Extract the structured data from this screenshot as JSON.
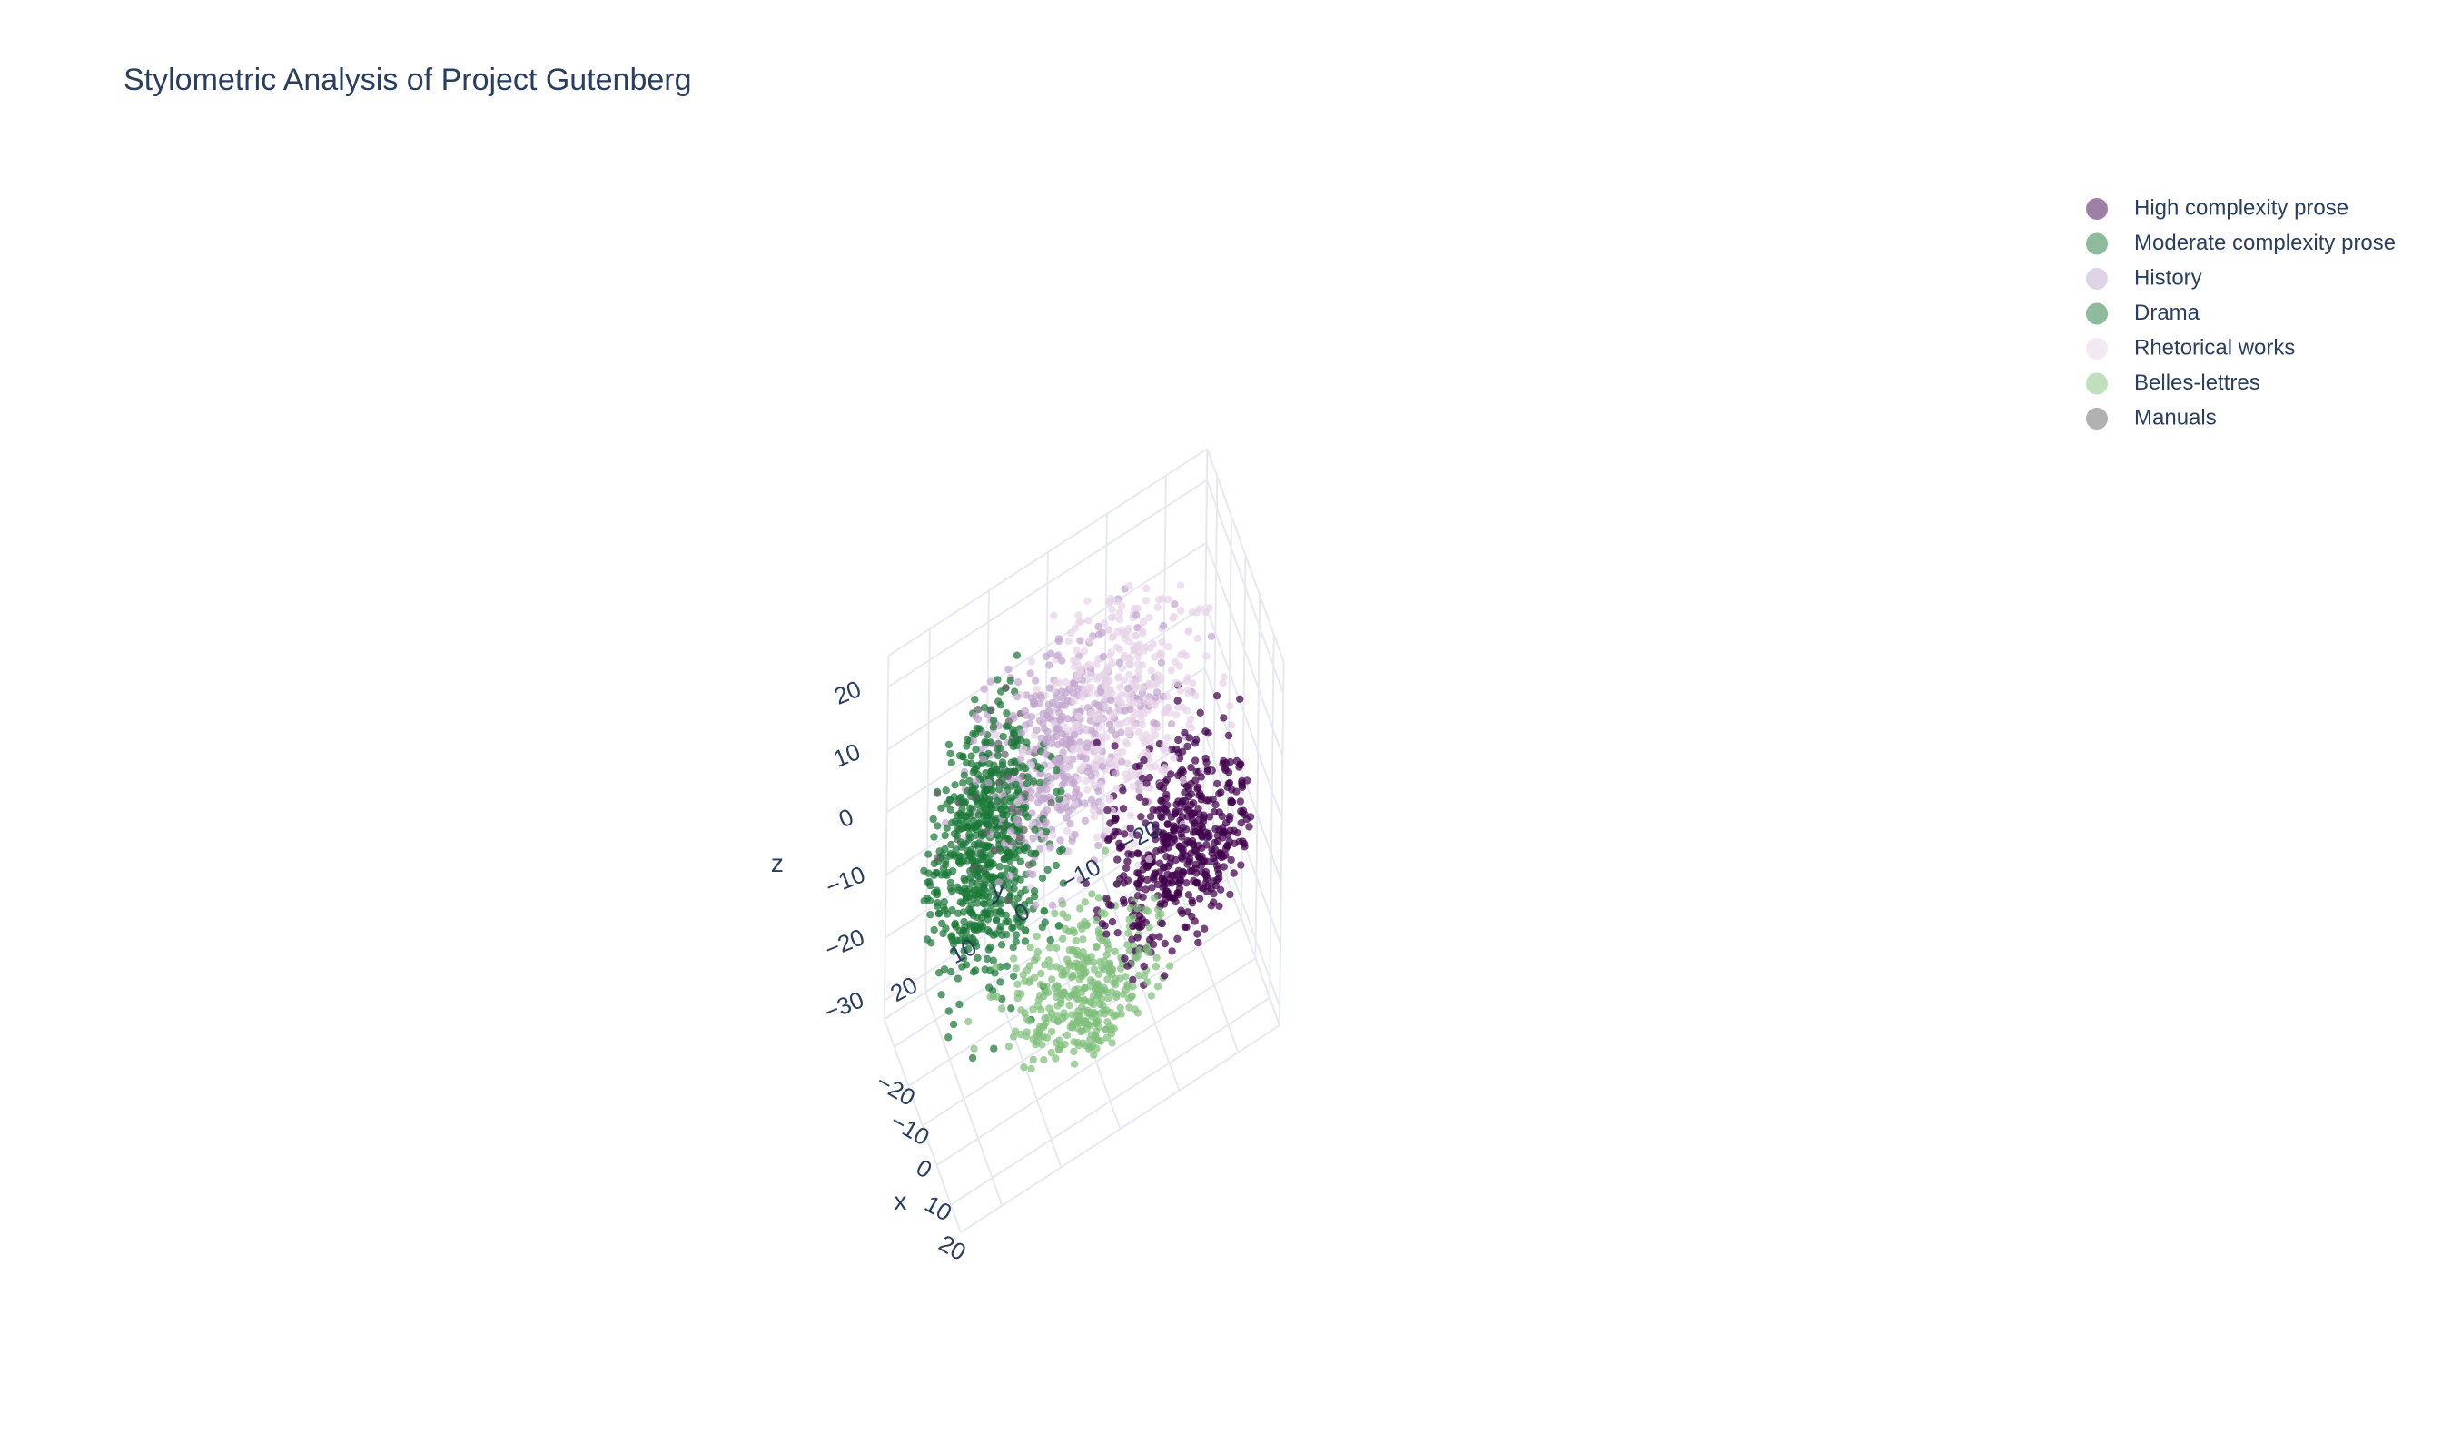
{
  "chart_data": {
    "type": "scatter3d",
    "title": "Stylometric Analysis of Project Gutenberg",
    "axes": {
      "x": {
        "label": "x",
        "range": [
          -27,
          27
        ],
        "ticks": [
          -20,
          -10,
          0,
          10,
          20
        ]
      },
      "y": {
        "label": "y",
        "range": [
          -27,
          27
        ],
        "ticks": [
          -20,
          -10,
          0,
          10,
          20
        ]
      },
      "z": {
        "label": "z",
        "range": [
          -33,
          25
        ],
        "ticks": [
          -30,
          -20,
          -10,
          0,
          10,
          20
        ]
      }
    },
    "grid": true,
    "legend": {
      "position": "top-right"
    },
    "series": [
      {
        "name": "High complexity prose",
        "color": "#40004b",
        "center": [
          12,
          -14,
          -6
        ],
        "spread": [
          7,
          6,
          7
        ],
        "n": 520
      },
      {
        "name": "Moderate complexity prose",
        "color": "#1b7837",
        "center": [
          -4,
          16,
          -2
        ],
        "spread": [
          7,
          5,
          9
        ],
        "n": 480
      },
      {
        "name": "History",
        "color": "#c2a5cf",
        "center": [
          -8,
          2,
          6
        ],
        "spread": [
          7,
          7,
          7
        ],
        "n": 420
      },
      {
        "name": "Drama",
        "color": "#1b7837",
        "center": [
          -10,
          14,
          4
        ],
        "spread": [
          4,
          4,
          10
        ],
        "n": 200
      },
      {
        "name": "Rhetorical works",
        "color": "#e7d4e8",
        "center": [
          -6,
          -8,
          10
        ],
        "spread": [
          8,
          7,
          7
        ],
        "n": 440
      },
      {
        "name": "Belles-lettres",
        "color": "#7fbf7b",
        "center": [
          16,
          4,
          -16
        ],
        "spread": [
          7,
          6,
          5
        ],
        "n": 420
      },
      {
        "name": "Manuals",
        "color": "#636363",
        "center": [
          -4,
          14,
          9
        ],
        "spread": [
          8,
          4,
          6
        ],
        "n": 40
      }
    ]
  }
}
